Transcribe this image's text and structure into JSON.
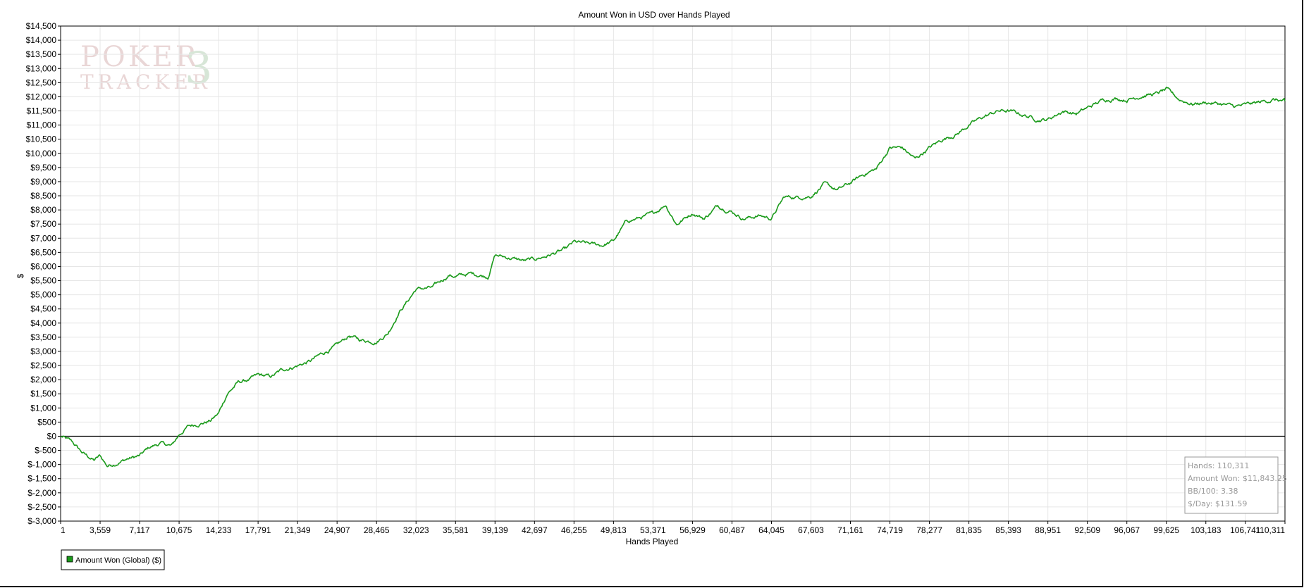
{
  "chart_data": {
    "type": "line",
    "title": "Amount Won in USD over Hands Played",
    "xlabel": "Hands Played",
    "ylabel": "$",
    "x_ticks": [
      "1",
      "3,559",
      "7,117",
      "10,675",
      "14,233",
      "17,791",
      "21,349",
      "24,907",
      "28,465",
      "32,023",
      "35,581",
      "39,139",
      "42,697",
      "46,255",
      "49,813",
      "53,371",
      "56,929",
      "60,487",
      "64,045",
      "67,603",
      "71,161",
      "74,719",
      "78,277",
      "81,835",
      "85,393",
      "88,951",
      "92,509",
      "96,067",
      "99,625",
      "103,183",
      "106,741",
      "110,311"
    ],
    "y_ticks": [
      "$14,500",
      "$14,000",
      "$13,500",
      "$13,000",
      "$12,500",
      "$12,000",
      "$11,500",
      "$11,000",
      "$10,500",
      "$10,000",
      "$9,500",
      "$9,000",
      "$8,500",
      "$8,000",
      "$7,500",
      "$7,000",
      "$6,500",
      "$6,000",
      "$5,500",
      "$5,000",
      "$4,500",
      "$4,000",
      "$3,500",
      "$3,000",
      "$2,500",
      "$2,000",
      "$1,500",
      "$1,000",
      "$500",
      "$0",
      "$-500",
      "$-1,000",
      "$-1,500",
      "$-2,000",
      "$-2,500",
      "$-3,000"
    ],
    "xlim": [
      1,
      110311
    ],
    "ylim": [
      -3000,
      14500
    ],
    "grid": true,
    "legend_position": "bottom-left",
    "series": [
      {
        "name": "Amount Won (Global) ($)",
        "color": "#1a9a1a",
        "x": [
          1,
          1000,
          2000,
          3000,
          3559,
          4200,
          5000,
          6000,
          7117,
          8000,
          9000,
          10000,
          10675,
          11500,
          12500,
          13500,
          14233,
          15000,
          16000,
          17000,
          17791,
          19000,
          20000,
          21349,
          22500,
          23500,
          24907,
          26000,
          27000,
          28465,
          29500,
          30500,
          31300,
          32023,
          33500,
          35000,
          35581,
          37000,
          38500,
          39139,
          40500,
          41800,
          42697,
          44000,
          45500,
          46255,
          47500,
          48800,
          49813,
          51000,
          52000,
          53371,
          54500,
          55500,
          56929,
          58000,
          59200,
          60487,
          61500,
          63000,
          64045,
          65200,
          66500,
          67603,
          68800,
          70000,
          71161,
          72300,
          73500,
          74719,
          75800,
          77000,
          78277,
          79500,
          80800,
          81835,
          83200,
          84500,
          85393,
          86800,
          88000,
          88951,
          90300,
          91500,
          92509,
          94000,
          95000,
          96067,
          97500,
          98700,
          99625,
          100800,
          102000,
          103183,
          104500,
          105800,
          106741,
          108000,
          109200,
          110311
        ],
        "y": [
          0,
          -200,
          -600,
          -850,
          -700,
          -1050,
          -950,
          -800,
          -700,
          -400,
          -250,
          -350,
          50,
          350,
          450,
          550,
          800,
          1500,
          1900,
          2000,
          2150,
          2100,
          2350,
          2500,
          2650,
          2900,
          3200,
          3550,
          3400,
          3350,
          3650,
          4400,
          4800,
          5200,
          5250,
          5700,
          5650,
          5750,
          5650,
          6400,
          6300,
          6200,
          6250,
          6400,
          6600,
          6850,
          6800,
          6750,
          6900,
          7600,
          7700,
          7850,
          8200,
          7500,
          7900,
          7700,
          8150,
          7950,
          7700,
          7800,
          7700,
          8450,
          8450,
          8500,
          8900,
          8700,
          8950,
          9250,
          9450,
          10200,
          10200,
          9800,
          10200,
          10500,
          10700,
          11000,
          11300,
          11500,
          11500,
          11350,
          11200,
          11200,
          11500,
          11400,
          11600,
          11900,
          11950,
          11900,
          12050,
          12100,
          12250,
          11900,
          11750,
          11800,
          11750,
          11650,
          11700,
          11800,
          11900,
          11843
        ]
      }
    ],
    "stats": {
      "hands": "Hands: 110,311",
      "amount_won": "Amount Won: $11,843.25",
      "bb_per_100": "BB/100: 3.38",
      "per_day": "$/Day: $131.59"
    },
    "watermark": {
      "line1": "POKER",
      "line2": "TRACKER",
      "digit": "3"
    }
  }
}
